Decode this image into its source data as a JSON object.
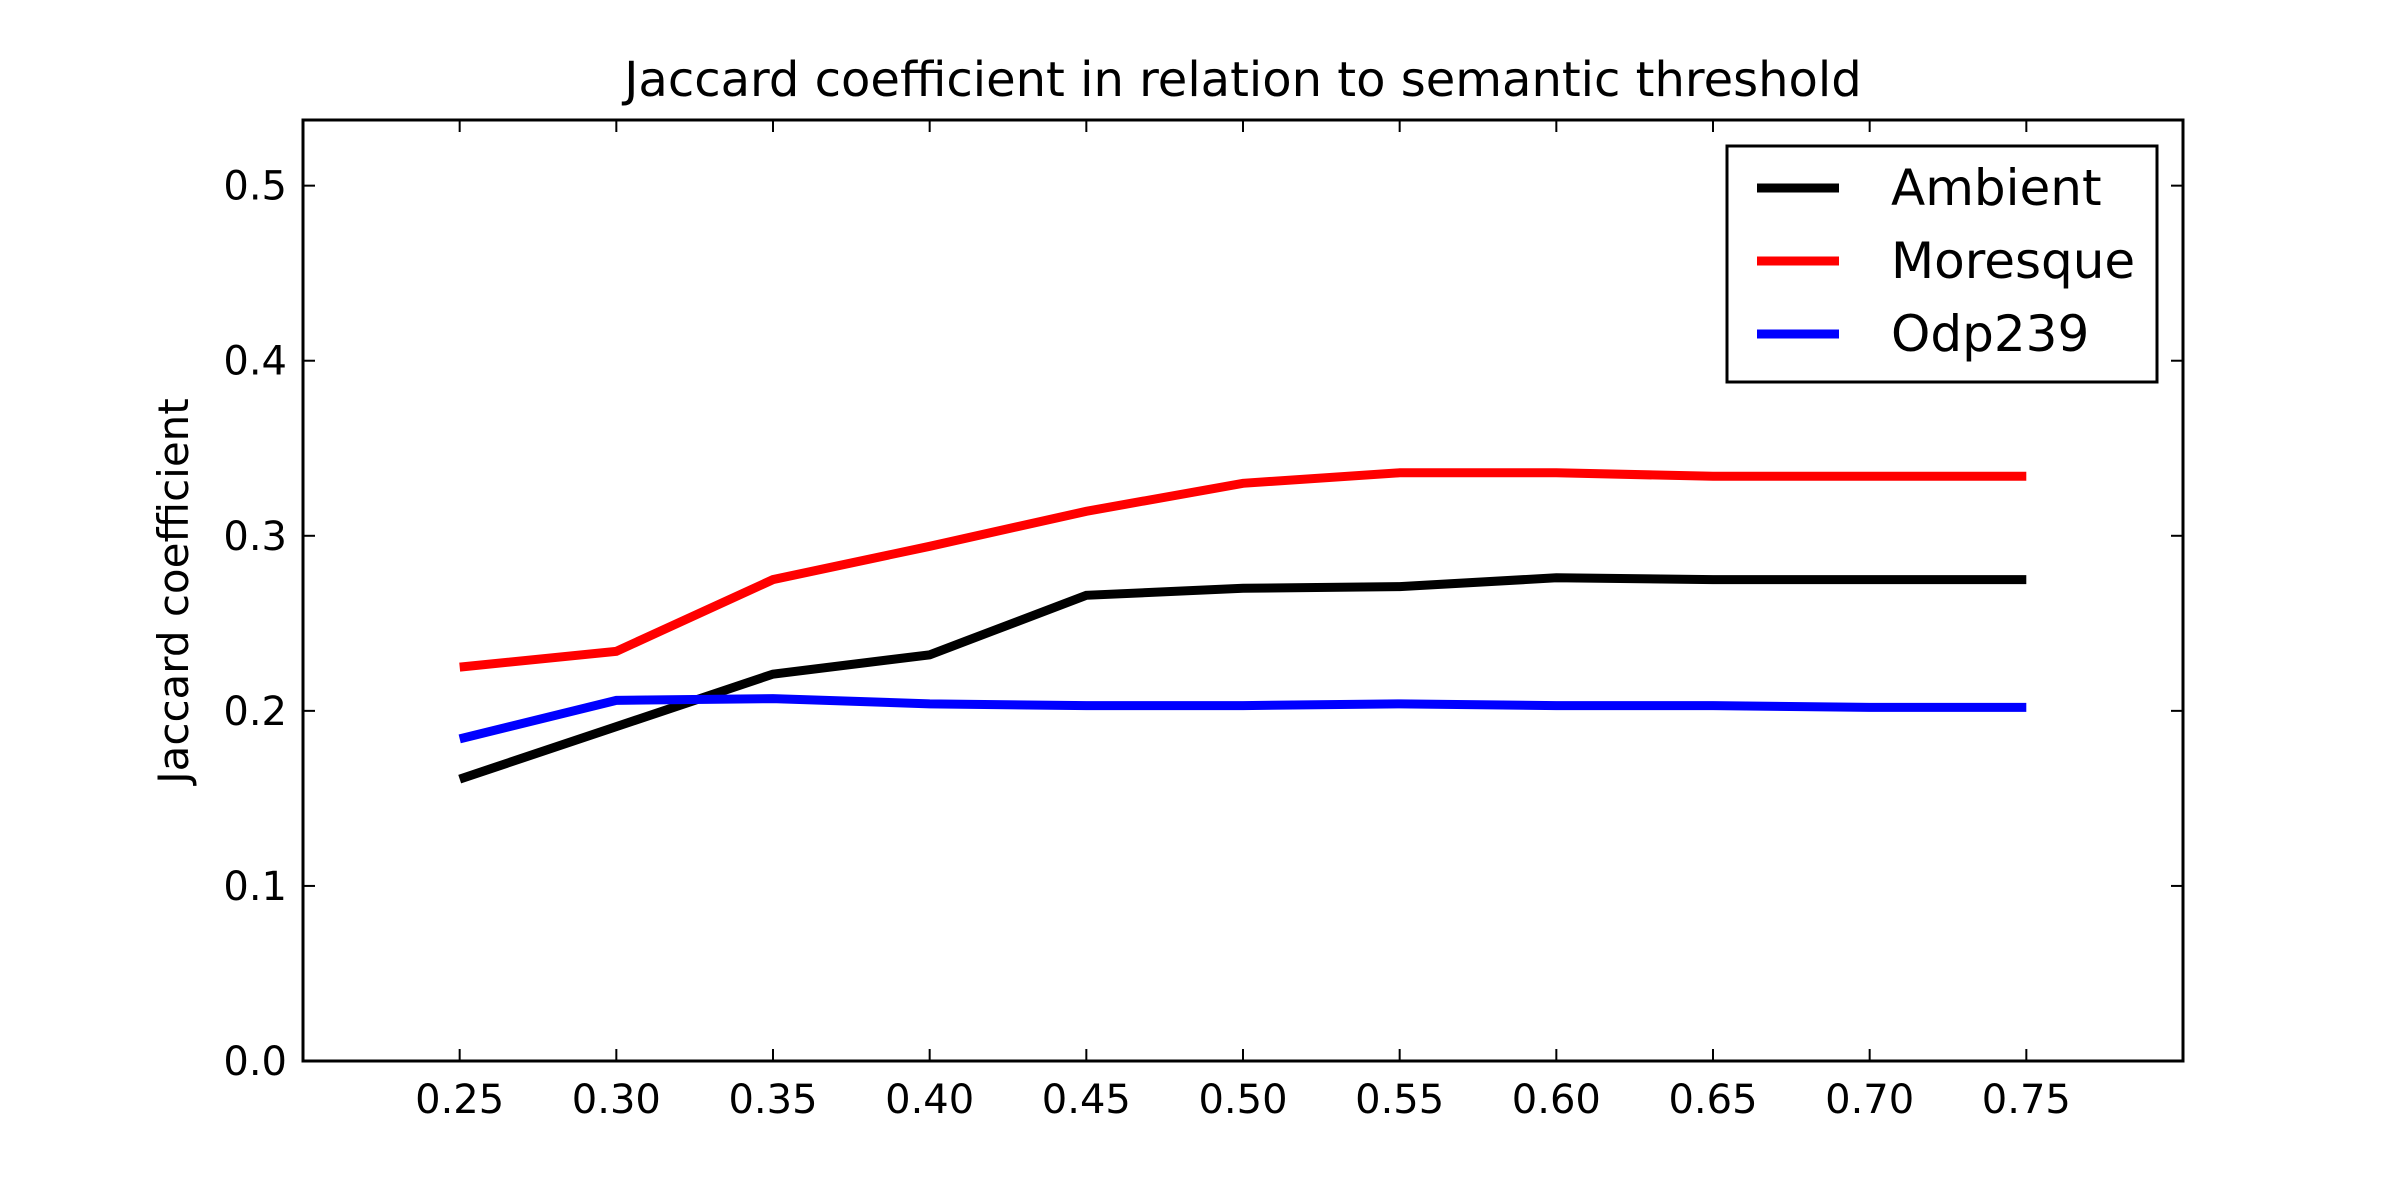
{
  "chart_data": {
    "type": "line",
    "title": "Jaccard coefficient in relation to semantic threshold",
    "xlabel": "",
    "ylabel": "Jaccard coefficient",
    "x": [
      0.25,
      0.3,
      0.35,
      0.4,
      0.45,
      0.5,
      0.55,
      0.6,
      0.65,
      0.7,
      0.75
    ],
    "x_tick_labels": [
      "0.25",
      "0.30",
      "0.35",
      "0.40",
      "0.45",
      "0.50",
      "0.55",
      "0.60",
      "0.65",
      "0.70",
      "0.75"
    ],
    "xlim": [
      0.2,
      0.8
    ],
    "ylim": [
      0.0,
      0.5375
    ],
    "y_ticks": [
      0.0,
      0.1,
      0.2,
      0.3,
      0.4,
      0.5
    ],
    "y_tick_labels": [
      "0.0",
      "0.1",
      "0.2",
      "0.3",
      "0.4",
      "0.5"
    ],
    "grid": false,
    "legend_position": "top-right",
    "series": [
      {
        "name": "Ambient",
        "color": "#000000",
        "values": [
          0.161,
          0.191,
          0.221,
          0.232,
          0.266,
          0.27,
          0.271,
          0.276,
          0.275,
          0.275,
          0.275
        ]
      },
      {
        "name": "Moresque",
        "color": "#ff0000",
        "values": [
          0.225,
          0.234,
          0.275,
          0.294,
          0.314,
          0.33,
          0.336,
          0.336,
          0.334,
          0.334,
          0.334
        ]
      },
      {
        "name": "Odp239",
        "color": "#0000ff",
        "values": [
          0.184,
          0.206,
          0.207,
          0.204,
          0.203,
          0.203,
          0.204,
          0.203,
          0.203,
          0.202,
          0.202
        ]
      }
    ]
  }
}
